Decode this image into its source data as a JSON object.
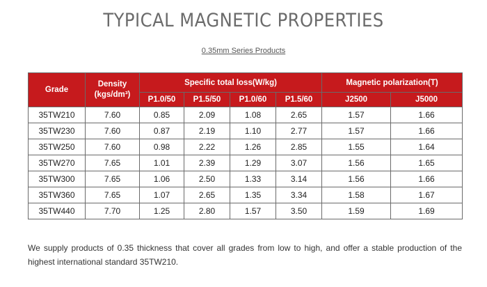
{
  "title": "TYPICAL MAGNETIC PROPERTIES",
  "subtitle": "0.35mm Series Products",
  "table": {
    "headers": {
      "grade": "Grade",
      "density": "Density\n(kgs/dm³)",
      "loss_group": "Specific total loss(W/kg)",
      "polar_group": "Magnetic polarization(T)",
      "loss_cols": [
        "P1.0/50",
        "P1.5/50",
        "P1.0/60",
        "P1.5/60"
      ],
      "polar_cols": [
        "J2500",
        "J5000"
      ]
    },
    "rows": [
      [
        "35TW210",
        "7.60",
        "0.85",
        "2.09",
        "1.08",
        "2.65",
        "1.57",
        "1.66"
      ],
      [
        "35TW230",
        "7.60",
        "0.87",
        "2.19",
        "1.10",
        "2.77",
        "1.57",
        "1.66"
      ],
      [
        "35TW250",
        "7.60",
        "0.98",
        "2.22",
        "1.26",
        "2.85",
        "1.55",
        "1.64"
      ],
      [
        "35TW270",
        "7.65",
        "1.01",
        "2.39",
        "1.29",
        "3.07",
        "1.56",
        "1.65"
      ],
      [
        "35TW300",
        "7.65",
        "1.06",
        "2.50",
        "1.33",
        "3.14",
        "1.56",
        "1.66"
      ],
      [
        "35TW360",
        "7.65",
        "1.07",
        "2.65",
        "1.35",
        "3.34",
        "1.58",
        "1.67"
      ],
      [
        "35TW440",
        "7.70",
        "1.25",
        "2.80",
        "1.57",
        "3.50",
        "1.59",
        "1.69"
      ]
    ]
  },
  "note": "We supply products of 0.35 thickness that cover all grades from low to high, and offer a stable production of the highest international standard 35TW210."
}
